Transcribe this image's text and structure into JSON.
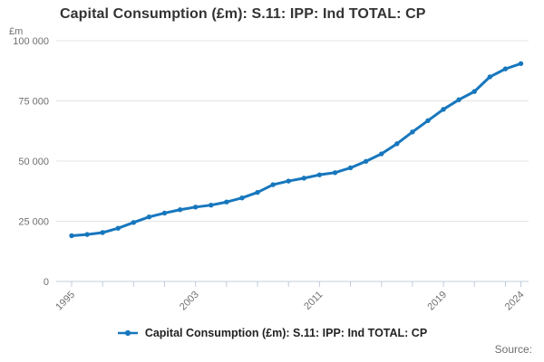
{
  "header": {
    "title": "Capital Consumption (£m): S.11: IPP: Ind TOTAL: CP"
  },
  "legend": {
    "label": "Capital Consumption (£m): S.11: IPP: Ind TOTAL: CP"
  },
  "source": {
    "label": "Source:"
  },
  "colors": {
    "line": "#1777bd",
    "grid": "#e4e4e4",
    "axis": "#c2ccd9",
    "tick_text": "#707070",
    "title_text": "#333333"
  },
  "chart_data": {
    "type": "line",
    "title": "Capital Consumption (£m): S.11: IPP: Ind TOTAL: CP",
    "ylabel": "£m",
    "xlabel": "",
    "x": [
      1995,
      1996,
      1997,
      1998,
      1999,
      2000,
      2001,
      2002,
      2003,
      2004,
      2005,
      2006,
      2007,
      2008,
      2009,
      2010,
      2011,
      2012,
      2013,
      2014,
      2015,
      2016,
      2017,
      2018,
      2019,
      2020,
      2021,
      2022,
      2023,
      2024
    ],
    "series": [
      {
        "name": "Capital Consumption (£m): S.11: IPP: Ind TOTAL: CP",
        "values": [
          19000,
          19500,
          20300,
          22100,
          24500,
          26800,
          28400,
          29800,
          30900,
          31700,
          33000,
          34700,
          37000,
          40200,
          41700,
          42900,
          44300,
          45200,
          47200,
          49900,
          53000,
          57200,
          62100,
          66800,
          71500,
          75500,
          78900,
          85000,
          88300,
          90500
        ]
      }
    ],
    "ylim": [
      0,
      100000
    ],
    "yticks": [
      {
        "value": 0,
        "label": "0"
      },
      {
        "value": 25000,
        "label": "25 000"
      },
      {
        "value": 50000,
        "label": "50 000"
      },
      {
        "value": 75000,
        "label": "75 000"
      },
      {
        "value": 100000,
        "label": "100 000"
      }
    ],
    "xtick_interval": 2,
    "xtick_labeled": [
      1995,
      2003,
      2011,
      2019,
      2024
    ],
    "grid": true,
    "legend_position": "bottom",
    "marker": "circle"
  }
}
